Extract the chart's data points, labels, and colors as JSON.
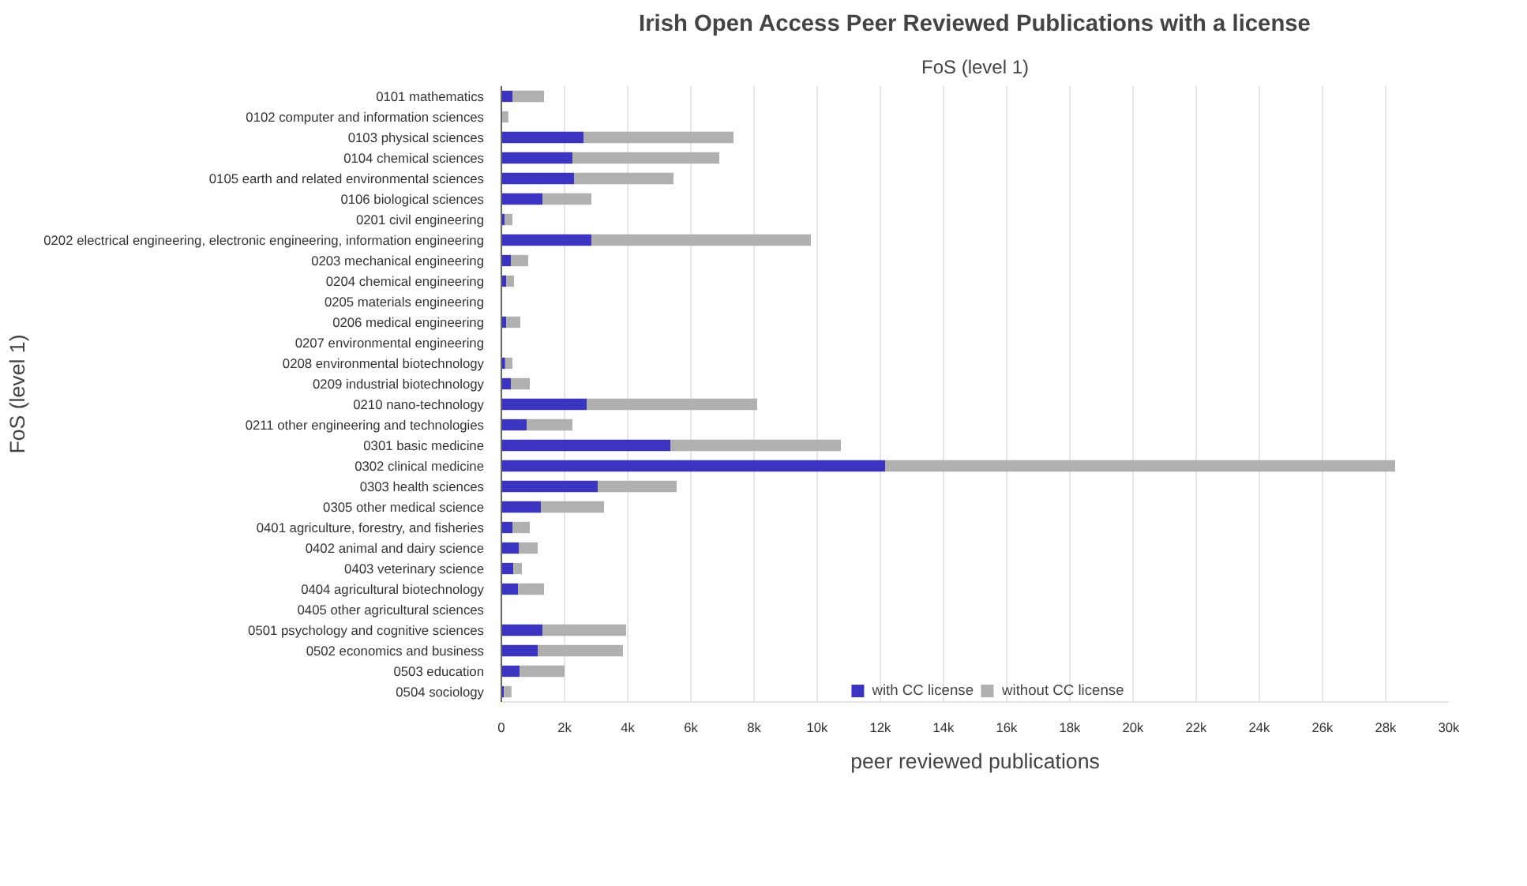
{
  "chart_data": {
    "type": "bar",
    "orientation": "horizontal",
    "stacked": true,
    "title": "Irish Open Access Peer Reviewed Publications with a license",
    "subtitle": "FoS (level 1)",
    "xlabel": "peer reviewed publications",
    "ylabel": "FoS (level 1)",
    "categories": [
      "0101 mathematics",
      "0102 computer and information sciences",
      "0103 physical sciences",
      "0104 chemical sciences",
      "0105 earth and related environmental sciences",
      "0106 biological sciences",
      "0201 civil engineering",
      "0202 electrical engineering, electronic engineering, information engineering",
      "0203 mechanical engineering",
      "0204 chemical engineering",
      "0205 materials engineering",
      "0206 medical engineering",
      "0207 environmental engineering",
      "0208 environmental biotechnology",
      "0209 industrial biotechnology",
      "0210 nano-technology",
      "0211 other engineering and technologies",
      "0301 basic medicine",
      "0302 clinical medicine",
      "0303 health sciences",
      "0305 other medical science",
      "0401 agriculture, forestry, and fisheries",
      "0402 animal and dairy science",
      "0403 veterinary science",
      "0404 agricultural biotechnology",
      "0405 other agricultural sciences",
      "0501 psychology and cognitive sciences",
      "0502 economics and business",
      "0503 education",
      "0504 sociology"
    ],
    "series": [
      {
        "name": "with CC license",
        "color": "#3a34c0",
        "values": [
          350,
          null,
          2600,
          2250,
          2300,
          1300,
          100,
          2850,
          300,
          150,
          0,
          150,
          null,
          120,
          300,
          2700,
          800,
          5350,
          12150,
          3050,
          1250,
          350,
          550,
          380,
          530,
          0,
          1300,
          1150,
          580,
          80
        ]
      },
      {
        "name": "without CC license",
        "color": "#b0b0b0",
        "values": [
          1000,
          220,
          4750,
          4650,
          3150,
          1550,
          250,
          6950,
          550,
          250,
          0,
          450,
          0,
          230,
          600,
          5400,
          1450,
          5400,
          16150,
          2500,
          2000,
          550,
          600,
          270,
          820,
          0,
          2650,
          2700,
          1420,
          240
        ]
      }
    ],
    "xlim": [
      0,
      30000
    ],
    "xticks": [
      0,
      {
        "value": 2000,
        "label": "2k"
      },
      {
        "value": 4000,
        "label": "4k"
      },
      {
        "value": 6000,
        "label": "6k"
      },
      {
        "value": 8000,
        "label": "8k"
      },
      {
        "value": 10000,
        "label": "10k"
      },
      {
        "value": 12000,
        "label": "12k"
      },
      {
        "value": 14000,
        "label": "14k"
      },
      {
        "value": 16000,
        "label": "16k"
      },
      {
        "value": 18000,
        "label": "18k"
      },
      {
        "value": 20000,
        "label": "20k"
      },
      {
        "value": 22000,
        "label": "22k"
      },
      {
        "value": 24000,
        "label": "24k"
      },
      {
        "value": 26000,
        "label": "26k"
      },
      {
        "value": 28000,
        "label": "28k"
      },
      {
        "value": 30000,
        "label": "30k"
      }
    ],
    "grid": "x",
    "legend": "bottom"
  }
}
